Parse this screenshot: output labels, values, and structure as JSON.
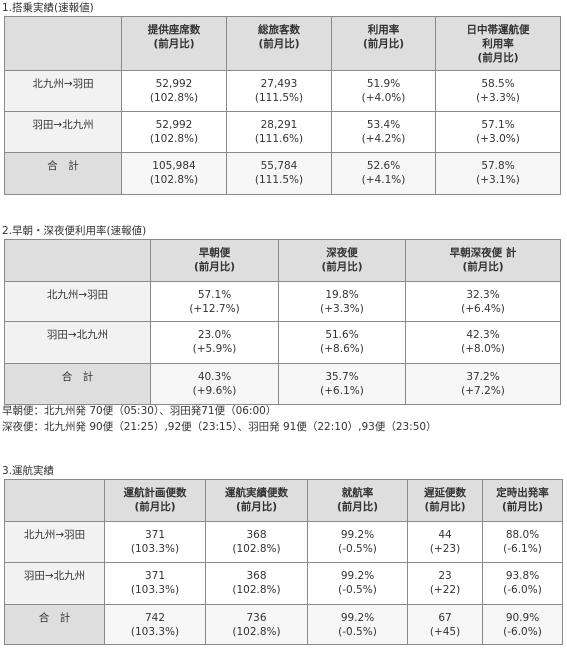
{
  "section1": {
    "heading": "1.搭乗実績(速報値)",
    "headers": [
      {
        "l1": "",
        "l2": ""
      },
      {
        "l1": "提供座席数",
        "l2": "(前月比)"
      },
      {
        "l1": "総旅客数",
        "l2": "(前月比)"
      },
      {
        "l1": "利用率",
        "l2": "(前月比)"
      },
      {
        "l1": "日中帯運航便",
        "l2": "利用率",
        "l3": "(前月比)"
      }
    ],
    "rows": [
      {
        "label": "北九州→羽田",
        "cells": [
          {
            "v": "52,992",
            "p": "(102.8%)"
          },
          {
            "v": "27,493",
            "p": "(111.5%)"
          },
          {
            "v": "51.9%",
            "p": "(+4.0%)"
          },
          {
            "v": "58.5%",
            "p": "(+3.3%)"
          }
        ]
      },
      {
        "label": "羽田→北九州",
        "cells": [
          {
            "v": "52,992",
            "p": "(102.8%)"
          },
          {
            "v": "28,291",
            "p": "(111.6%)"
          },
          {
            "v": "53.4%",
            "p": "(+4.2%)"
          },
          {
            "v": "57.1%",
            "p": "(+3.0%)"
          }
        ]
      },
      {
        "label": "合　計",
        "cells": [
          {
            "v": "105,984",
            "p": "(102.8%)"
          },
          {
            "v": "55,784",
            "p": "(111.5%)"
          },
          {
            "v": "52.6%",
            "p": "(+4.1%)"
          },
          {
            "v": "57.8%",
            "p": "(+3.1%)"
          }
        ]
      }
    ]
  },
  "section2": {
    "heading": "2.早朝・深夜便利用率(速報値)",
    "headers": [
      {
        "l1": "",
        "l2": ""
      },
      {
        "l1": "早朝便",
        "l2": "(前月比)"
      },
      {
        "l1": "深夜便",
        "l2": "(前月比)"
      },
      {
        "l1": "早朝深夜便 計",
        "l2": "(前月比)"
      }
    ],
    "rows": [
      {
        "label": "北九州→羽田",
        "cells": [
          {
            "v": "57.1%",
            "p": "(+12.7%)"
          },
          {
            "v": "19.8%",
            "p": "(+3.3%)"
          },
          {
            "v": "32.3%",
            "p": "(+6.4%)"
          }
        ]
      },
      {
        "label": "羽田→北九州",
        "cells": [
          {
            "v": "23.0%",
            "p": "(+5.9%)"
          },
          {
            "v": "51.6%",
            "p": "(+8.6%)"
          },
          {
            "v": "42.3%",
            "p": "(+8.0%)"
          }
        ]
      },
      {
        "label": "合　計",
        "cells": [
          {
            "v": "40.3%",
            "p": "(+9.6%)"
          },
          {
            "v": "35.7%",
            "p": "(+6.1%)"
          },
          {
            "v": "37.2%",
            "p": "(+7.2%)"
          }
        ]
      }
    ],
    "notes": [
      "早朝便：北九州発 70便（05:30）、羽田発71便（06:00）",
      "深夜便：北九州発 90便（21:25）,92便（23:15）、羽田発 91便（22:10）,93便（23:50）"
    ]
  },
  "section3": {
    "heading": "3.運航実績",
    "headers": [
      {
        "l1": "",
        "l2": ""
      },
      {
        "l1": "運航計画便数",
        "l2": "(前月比)"
      },
      {
        "l1": "運航実績便数",
        "l2": "(前月比)"
      },
      {
        "l1": "就航率",
        "l2": "(前月比)"
      },
      {
        "l1": "遅延便数",
        "l2": "(前月比)"
      },
      {
        "l1": "定時出発率",
        "l2": "(前月比)"
      }
    ],
    "rows": [
      {
        "label": "北九州→羽田",
        "cells": [
          {
            "v": "371",
            "p": "(103.3%)"
          },
          {
            "v": "368",
            "p": "(102.8%)"
          },
          {
            "v": "99.2%",
            "p": "(-0.5%)"
          },
          {
            "v": "44",
            "p": "(+23)"
          },
          {
            "v": "88.0%",
            "p": "(-6.1%)"
          }
        ]
      },
      {
        "label": "羽田→北九州",
        "cells": [
          {
            "v": "371",
            "p": "(103.3%)"
          },
          {
            "v": "368",
            "p": "(102.8%)"
          },
          {
            "v": "99.2%",
            "p": "(-0.5%)"
          },
          {
            "v": "23",
            "p": "(+22)"
          },
          {
            "v": "93.8%",
            "p": "(-6.0%)"
          }
        ]
      },
      {
        "label": "合　計",
        "cells": [
          {
            "v": "742",
            "p": "(103.3%)"
          },
          {
            "v": "736",
            "p": "(102.8%)"
          },
          {
            "v": "99.2%",
            "p": "(-0.5%)"
          },
          {
            "v": "67",
            "p": "(+45)"
          },
          {
            "v": "90.9%",
            "p": "(-6.0%)"
          }
        ]
      }
    ]
  }
}
